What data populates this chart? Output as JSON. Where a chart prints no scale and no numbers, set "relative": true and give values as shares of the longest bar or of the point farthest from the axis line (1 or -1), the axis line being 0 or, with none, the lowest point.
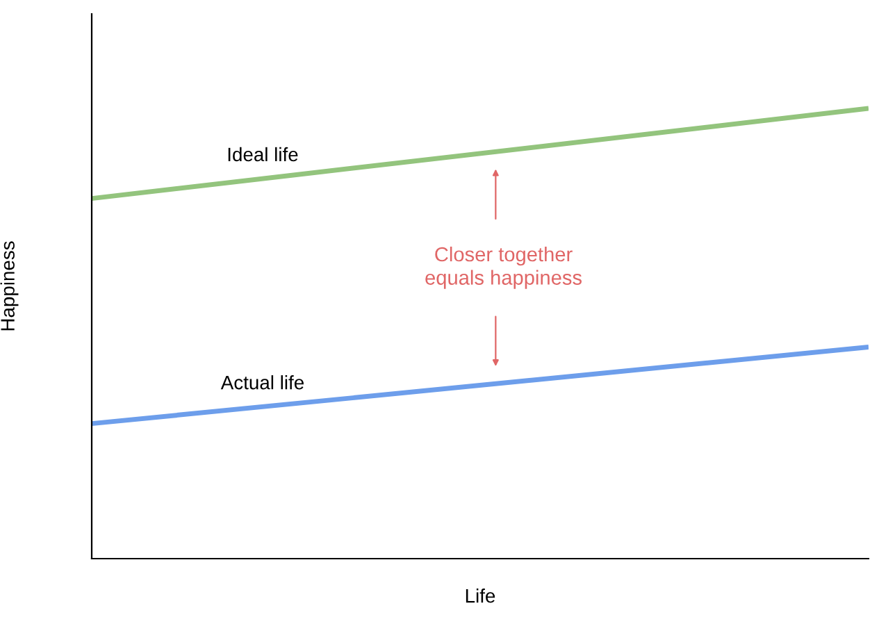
{
  "chart_data": {
    "type": "line",
    "relative": true,
    "xlabel": "Life",
    "ylabel": "Happiness",
    "categories": [
      null,
      null
    ],
    "series": [
      {
        "name": "Ideal life",
        "color": "#93c47d",
        "values": [
          0.8,
          1.0
        ]
      },
      {
        "name": "Actual life",
        "color": "#6d9eeb",
        "values": [
          0.3,
          0.47
        ]
      }
    ],
    "annotations": [
      "Closer together\nequals happiness"
    ],
    "grid": false,
    "legend": false,
    "marker": "none",
    "line_style": "solid"
  }
}
